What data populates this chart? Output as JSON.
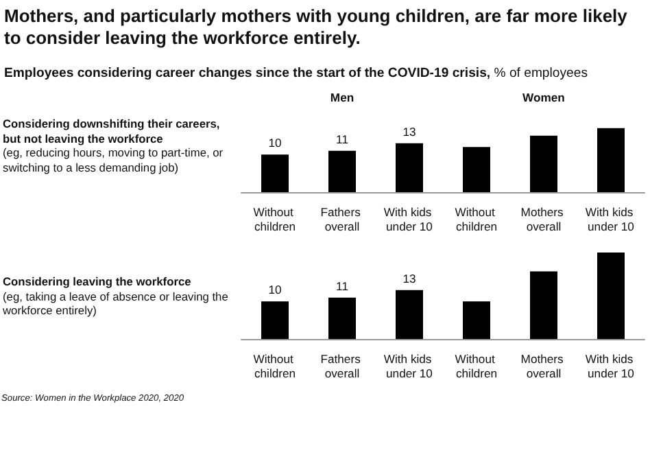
{
  "chart_data": [
    {
      "type": "other",
      "title": "Mothers, and particularly mothers with young children, are far more likely to consider leaving the workforce entirely.",
      "subtitle": "Employees considering career changes since the start of the COVID-19 crisis, % of employees"
    },
    {
      "type": "bar",
      "title": "Considering downshifting their careers, but not leaving the workforce",
      "subtitle": "(eg, reducing hours, moving to part-time, or switching to a less demanding job)",
      "categories": [
        "Without children",
        "Fathers overall",
        "With kids under 10",
        "Without children",
        "Mothers overall",
        "With kids under 10"
      ],
      "values": [
        10,
        11,
        13,
        12,
        15,
        17
      ],
      "value_labels": [
        "10",
        "11",
        "13",
        null,
        null,
        null
      ],
      "color": "#000000",
      "tick_labels": "x",
      "annotations": [
        "Men",
        "Women"
      ]
    },
    {
      "type": "bar",
      "title": "Considering leaving the workforce",
      "subtitle": "(eg, taking a leave of absence or leaving the workforce entirely)",
      "categories": [
        "Without children",
        "Fathers overall",
        "With kids under 10",
        "Without children",
        "Mothers overall",
        "With kids under 10"
      ],
      "values": [
        10,
        11,
        13,
        10,
        18,
        23
      ],
      "value_labels": [
        "10",
        "11",
        "13",
        null,
        null,
        null
      ],
      "color": "#000000",
      "tick_labels": "x",
      "annotations": [
        "Source: Women in the Workplace 2020, 2020"
      ]
    }
  ]
}
